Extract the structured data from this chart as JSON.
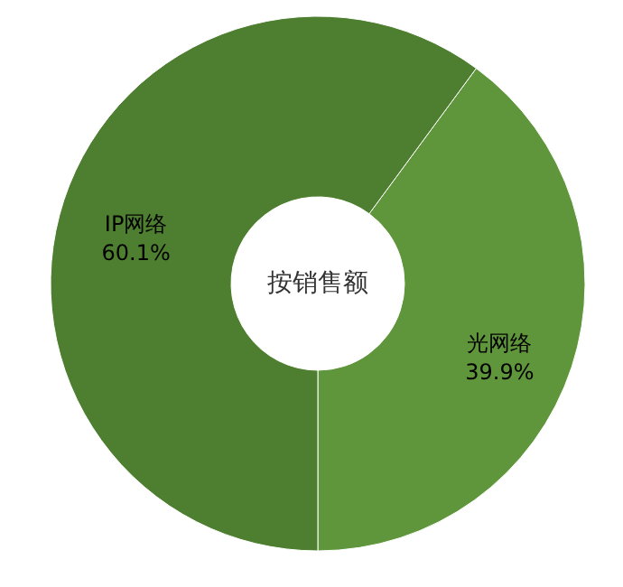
{
  "chart_data": {
    "type": "donut",
    "title": "按销售额",
    "categories": [
      "光网络",
      "IP网络"
    ],
    "values": [
      39.9,
      60.1
    ],
    "value_labels": [
      "39.9%",
      "60.1%"
    ],
    "colors": [
      "#5f963b",
      "#4e7f30"
    ]
  }
}
